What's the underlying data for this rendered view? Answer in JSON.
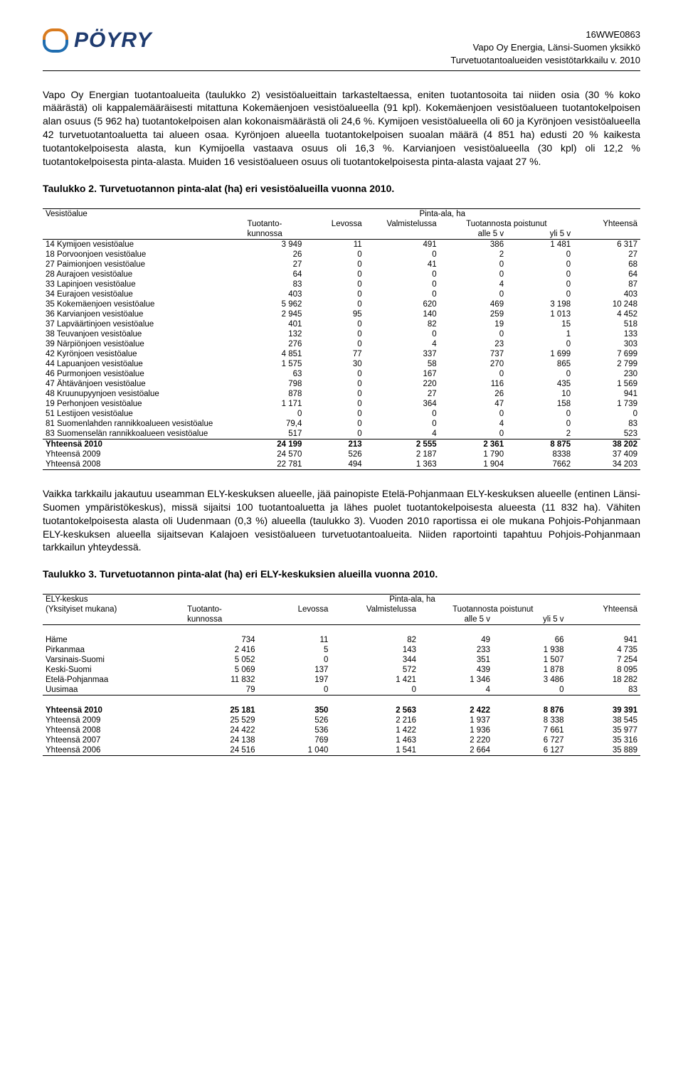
{
  "header": {
    "logo_text": "PÖYRY",
    "ref": "16WWE0863",
    "line1": "Vapo Oy Energia, Länsi-Suomen yksikkö",
    "line2": "Turvetuotantoalueiden vesistötarkkailu v. 2010"
  },
  "para1": "Vapo Oy Energian tuotantoalueita (taulukko 2) vesistöalueittain tarkasteltaessa, eniten tuotantosoita tai niiden osia (30 % koko määrästä) oli kappalemääräisesti mitattuna Kokemäenjoen vesistöalueella (91 kpl). Kokemäenjoen vesistöalueen tuotantokelpoisen alan osuus (5 962 ha) tuotantokelpoisen alan kokonaismäärästä oli 24,6 %. Kymijoen vesistöalueella oli 60 ja Kyrönjoen vesistöalueella 42 turvetuotantoaluetta tai alueen osaa. Kyrönjoen alueella tuotantokelpoisen suoalan määrä (4 851 ha) edusti 20 % kaikesta tuotantokelpoisesta alasta, kun Kymijoella vastaava osuus oli 16,3 %. Karvianjoen vesistöalueella (30 kpl) oli 12,2 % tuotantokelpoisesta pinta-alasta. Muiden 16 vesistöalueen osuus oli tuotantokelpoisesta pinta-alasta vajaat 27 %.",
  "caption1": "Taulukko 2. Turvetuotannon pinta-alat (ha) eri vesistöalueilla vuonna 2010.",
  "table1": {
    "col_header1": "Vesistöalue",
    "col_header_pinta": "Pinta-ala, ha",
    "col_header_tuotanto1": "Tuotanto-",
    "col_header_tuotanto2": "kunnossa",
    "col_header_levossa": "Levossa",
    "col_header_valm": "Valmistelussa",
    "col_header_pois": "Tuotannosta poistunut",
    "col_header_alle": "alle 5 v",
    "col_header_yli": "yli 5 v",
    "col_header_yht": "Yhteensä",
    "rows": [
      {
        "name": "14 Kymijoen vesistöalue",
        "c1": "3 949",
        "c2": "11",
        "c3": "491",
        "c4": "386",
        "c5": "1 481",
        "c6": "6 317"
      },
      {
        "name": "18 Porvoonjoen vesistöalue",
        "c1": "26",
        "c2": "0",
        "c3": "0",
        "c4": "2",
        "c5": "0",
        "c6": "27"
      },
      {
        "name": "27 Paimionjoen vesistöalue",
        "c1": "27",
        "c2": "0",
        "c3": "41",
        "c4": "0",
        "c5": "0",
        "c6": "68"
      },
      {
        "name": "28 Aurajoen vesistöalue",
        "c1": "64",
        "c2": "0",
        "c3": "0",
        "c4": "0",
        "c5": "0",
        "c6": "64"
      },
      {
        "name": "33 Lapinjoen vesistöalue",
        "c1": "83",
        "c2": "0",
        "c3": "0",
        "c4": "4",
        "c5": "0",
        "c6": "87"
      },
      {
        "name": "34 Eurajoen vesistöalue",
        "c1": "403",
        "c2": "0",
        "c3": "0",
        "c4": "0",
        "c5": "0",
        "c6": "403"
      },
      {
        "name": "35 Kokemäenjoen vesistöalue",
        "c1": "5 962",
        "c2": "0",
        "c3": "620",
        "c4": "469",
        "c5": "3 198",
        "c6": "10 248"
      },
      {
        "name": "36 Karvianjoen vesistöalue",
        "c1": "2 945",
        "c2": "95",
        "c3": "140",
        "c4": "259",
        "c5": "1 013",
        "c6": "4 452"
      },
      {
        "name": "37 Lapväärtinjoen vesistöalue",
        "c1": "401",
        "c2": "0",
        "c3": "82",
        "c4": "19",
        "c5": "15",
        "c6": "518"
      },
      {
        "name": "38 Teuvanjoen vesistöalue",
        "c1": "132",
        "c2": "0",
        "c3": "0",
        "c4": "0",
        "c5": "1",
        "c6": "133"
      },
      {
        "name": "39 Närpiönjoen vesistöalue",
        "c1": "276",
        "c2": "0",
        "c3": "4",
        "c4": "23",
        "c5": "0",
        "c6": "303"
      },
      {
        "name": "42 Kyrönjoen vesistöalue",
        "c1": "4 851",
        "c2": "77",
        "c3": "337",
        "c4": "737",
        "c5": "1 699",
        "c6": "7 699"
      },
      {
        "name": "44 Lapuanjoen vesistöalue",
        "c1": "1 575",
        "c2": "30",
        "c3": "58",
        "c4": "270",
        "c5": "865",
        "c6": "2 799"
      },
      {
        "name": "46 Purmonjoen vesistöalue",
        "c1": "63",
        "c2": "0",
        "c3": "167",
        "c4": "0",
        "c5": "0",
        "c6": "230"
      },
      {
        "name": "47 Ähtävänjoen vesistöalue",
        "c1": "798",
        "c2": "0",
        "c3": "220",
        "c4": "116",
        "c5": "435",
        "c6": "1 569"
      },
      {
        "name": "48 Kruunupyynjoen vesistöalue",
        "c1": "878",
        "c2": "0",
        "c3": "27",
        "c4": "26",
        "c5": "10",
        "c6": "941"
      },
      {
        "name": "19 Perhonjoen vesistöalue",
        "c1": "1 171",
        "c2": "0",
        "c3": "364",
        "c4": "47",
        "c5": "158",
        "c6": "1 739"
      },
      {
        "name": "51 Lestijoen vesistöalue",
        "c1": "0",
        "c2": "0",
        "c3": "0",
        "c4": "0",
        "c5": "0",
        "c6": "0"
      },
      {
        "name": "81 Suomenlahden rannikkoalueen vesistöalue",
        "c1": "79,4",
        "c2": "0",
        "c3": "0",
        "c4": "4",
        "c5": "0",
        "c6": "83"
      },
      {
        "name": "83 Suomenselän rannikkoalueen vesistöalue",
        "c1": "517",
        "c2": "0",
        "c3": "4",
        "c4": "0",
        "c5": "2",
        "c6": "523"
      }
    ],
    "total2010": {
      "name": "Yhteensä 2010",
      "c1": "24 199",
      "c2": "213",
      "c3": "2 555",
      "c4": "2 361",
      "c5": "8 875",
      "c6": "38 202"
    },
    "total2009": {
      "name": "Yhteensä 2009",
      "c1": "24 570",
      "c2": "526",
      "c3": "2 187",
      "c4": "1 790",
      "c5": "8338",
      "c6": "37 409"
    },
    "total2008": {
      "name": "Yhteensä 2008",
      "c1": "22 781",
      "c2": "494",
      "c3": "1 363",
      "c4": "1 904",
      "c5": "7662",
      "c6": "34 203"
    }
  },
  "para2": "Vaikka tarkkailu jakautuu useamman ELY-keskuksen alueelle, jää painopiste Etelä-Pohjanmaan ELY-keskuksen alueelle (entinen Länsi-Suomen ympäristökeskus), missä sijaitsi 100 tuotantoaluetta ja lähes puolet tuotantokelpoisesta alueesta (11 832 ha). Vähiten tuotantokelpoisesta alasta oli Uudenmaan (0,3 %) alueella (taulukko 3). Vuoden 2010 raportissa ei ole mukana Pohjois-Pohjanmaan ELY-keskuksen alueella sijaitsevan Kalajoen vesistöalueen turvetuotantoalueita. Niiden raportointi tapahtuu Pohjois-Pohjanmaan tarkkailun yhteydessä.",
  "caption2": "Taulukko 3. Turvetuotannon pinta-alat (ha) eri ELY-keskuksien alueilla vuonna 2010.",
  "table2": {
    "col_header1": "ELY-keskus",
    "col_header_sub": "(Yksityiset mukana)",
    "col_header_pinta": "Pinta-ala, ha",
    "col_header_tuotanto1": "Tuotanto-",
    "col_header_tuotanto2": "kunnossa",
    "col_header_levossa": "Levossa",
    "col_header_valm": "Valmistelussa",
    "col_header_pois": "Tuotannosta poistunut",
    "col_header_alle": "alle 5 v",
    "col_header_yli": "yli 5 v",
    "col_header_yht": "Yhteensä",
    "rows": [
      {
        "name": "Häme",
        "c1": "734",
        "c2": "11",
        "c3": "82",
        "c4": "49",
        "c5": "66",
        "c6": "941"
      },
      {
        "name": "Pirkanmaa",
        "c1": "2 416",
        "c2": "5",
        "c3": "143",
        "c4": "233",
        "c5": "1 938",
        "c6": "4 735"
      },
      {
        "name": "Varsinais-Suomi",
        "c1": "5 052",
        "c2": "0",
        "c3": "344",
        "c4": "351",
        "c5": "1 507",
        "c6": "7 254"
      },
      {
        "name": "Keski-Suomi",
        "c1": "5 069",
        "c2": "137",
        "c3": "572",
        "c4": "439",
        "c5": "1 878",
        "c6": "8 095"
      },
      {
        "name": "Etelä-Pohjanmaa",
        "c1": "11 832",
        "c2": "197",
        "c3": "1 421",
        "c4": "1 346",
        "c5": "3 486",
        "c6": "18 282"
      },
      {
        "name": "Uusimaa",
        "c1": "79",
        "c2": "0",
        "c3": "0",
        "c4": "4",
        "c5": "0",
        "c6": "83"
      }
    ],
    "total2010": {
      "name": "Yhteensä 2010",
      "c1": "25 181",
      "c2": "350",
      "c3": "2 563",
      "c4": "2 422",
      "c5": "8 876",
      "c6": "39 391"
    },
    "totals": [
      {
        "name": "Yhteensä 2009",
        "c1": "25 529",
        "c2": "526",
        "c3": "2 216",
        "c4": "1 937",
        "c5": "8 338",
        "c6": "38 545"
      },
      {
        "name": "Yhteensä 2008",
        "c1": "24 422",
        "c2": "536",
        "c3": "1 422",
        "c4": "1 936",
        "c5": "7 661",
        "c6": "35 977"
      },
      {
        "name": "Yhteensä 2007",
        "c1": "24 138",
        "c2": "769",
        "c3": "1 463",
        "c4": "2 220",
        "c5": "6 727",
        "c6": "35 316"
      },
      {
        "name": "Yhteensä 2006",
        "c1": "24 516",
        "c2": "1 040",
        "c3": "1 541",
        "c4": "2 664",
        "c5": "6 127",
        "c6": "35 889"
      }
    ]
  }
}
